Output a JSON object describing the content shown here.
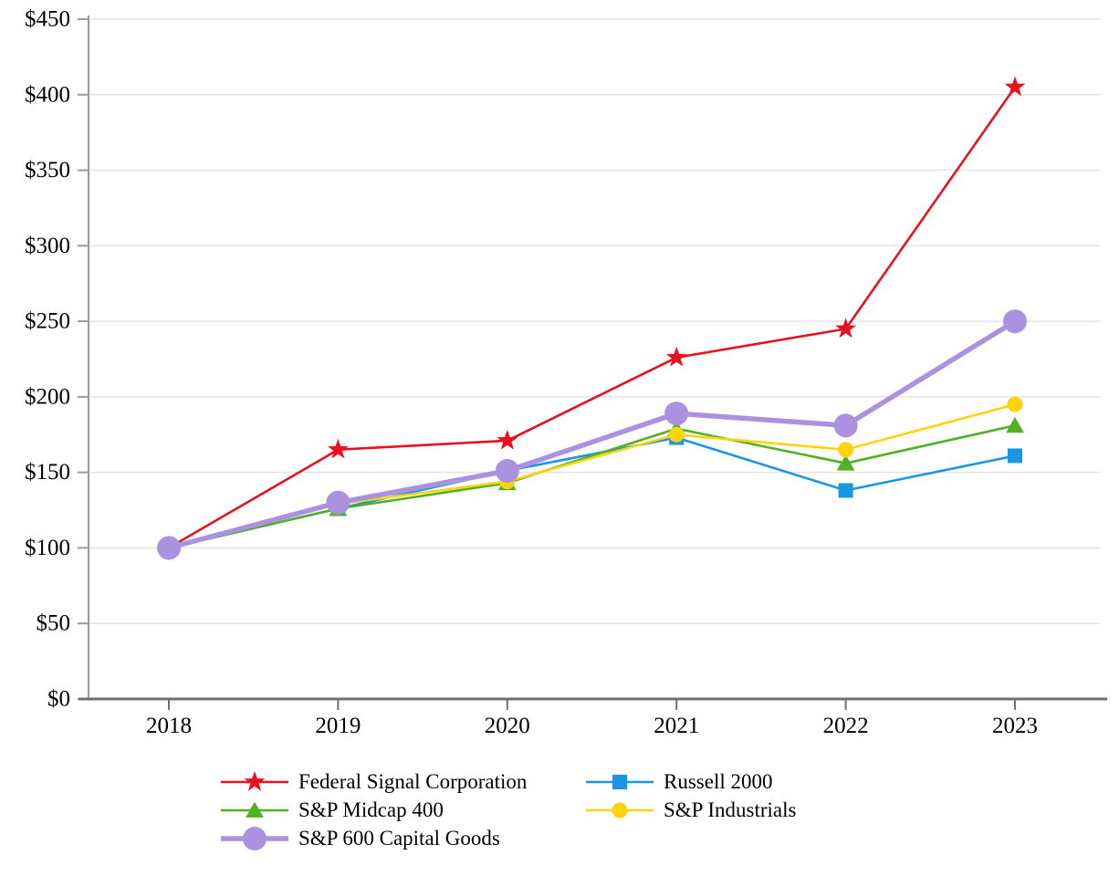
{
  "page": {
    "background": "#ffffff",
    "text_color": "#000000"
  },
  "chart_data": {
    "type": "line",
    "title": "",
    "categories": [
      "2018",
      "2019",
      "2020",
      "2021",
      "2022",
      "2023"
    ],
    "y_axis": {
      "min": 0,
      "max": 450,
      "step": 50,
      "tick_labels": [
        "$0",
        "$50",
        "$100",
        "$150",
        "$200",
        "$250",
        "$300",
        "$350",
        "$400",
        "$450"
      ]
    },
    "grid": "horizontal",
    "legend": {
      "position": "bottom",
      "columns": 2
    },
    "style": {
      "grid_color": "#e4e4e4",
      "y_axis_color": "#9a9a9a",
      "x_axis_color": "#707070",
      "tick_color": "#707070"
    },
    "series": [
      {
        "name": "Federal Signal Corporation",
        "color": "#e8111f",
        "marker": "star",
        "marker_size": 22,
        "line_width": 2.6,
        "values": [
          100,
          165,
          171,
          226,
          245,
          405
        ]
      },
      {
        "name": "Russell 2000",
        "color": "#1a96e6",
        "marker": "square",
        "marker_size": 16,
        "line_width": 2.6,
        "values": [
          100,
          126,
          151,
          173,
          138,
          161
        ]
      },
      {
        "name": "S&P Midcap 400",
        "color": "#52b122",
        "marker": "triangle",
        "marker_size": 18,
        "line_width": 2.6,
        "values": [
          100,
          126,
          143,
          179,
          156,
          181
        ]
      },
      {
        "name": "S&P Industrials",
        "color": "#fdd40c",
        "marker": "circle",
        "marker_size": 17,
        "line_width": 2.6,
        "values": [
          100,
          129,
          144,
          175,
          165,
          195
        ]
      },
      {
        "name": "S&P 600 Capital Goods",
        "color": "#aa92e0",
        "marker": "circle",
        "marker_size": 26,
        "line_width": 5.5,
        "values": [
          100,
          130,
          151,
          189,
          181,
          250
        ]
      }
    ]
  }
}
